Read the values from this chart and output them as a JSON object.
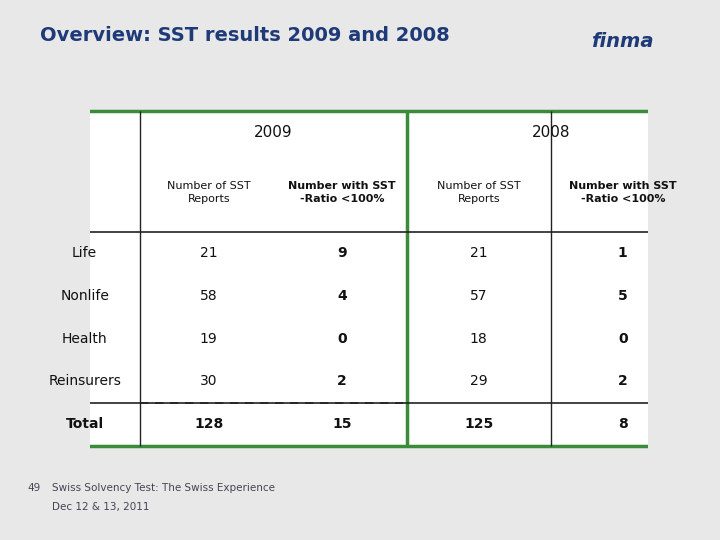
{
  "title": "Overview: SST results 2009 and 2008",
  "title_color": "#1e3a78",
  "background_color": "#e8e8e8",
  "header_year_2009": "2009",
  "header_year_2008": "2008",
  "col_headers": [
    "Number of SST\nReports",
    "Number with SST\n-Ratio <100%",
    "Number of SST\nReports",
    "Number with SST\n-Ratio <100%"
  ],
  "row_labels": [
    "Life",
    "Nonlife",
    "Health",
    "Reinsurers",
    "Total"
  ],
  "data_2009_reports": [
    21,
    58,
    19,
    30,
    128
  ],
  "data_2009_ratio": [
    9,
    4,
    0,
    2,
    15
  ],
  "data_2008_reports": [
    21,
    57,
    18,
    29,
    125
  ],
  "data_2008_ratio": [
    1,
    5,
    0,
    2,
    8
  ],
  "green_color": "#3a8c3a",
  "dark_line_color": "#222222",
  "footer_number": "49",
  "footer_text1": "Swiss Solvency Test: The Swiss Experience",
  "footer_text2": "Dec 12 & 13, 2011",
  "finma_color": "#1e3a78"
}
